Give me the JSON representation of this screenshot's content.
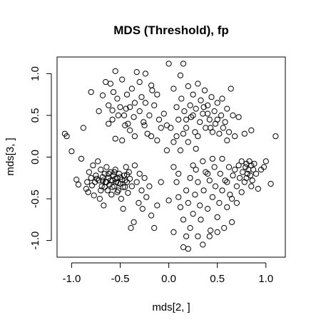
{
  "chart_data": {
    "type": "scatter",
    "title": "MDS (Threshold), fp",
    "xlabel": "mds[2, ]",
    "ylabel": "mds[3, ]",
    "xlim": [
      -1.15,
      1.2
    ],
    "ylim": [
      -1.2,
      1.2
    ],
    "xticks": [
      -1.0,
      -0.5,
      0.0,
      0.5,
      1.0
    ],
    "xtick_labels": [
      "-1.0",
      "-0.5",
      "0.0",
      "0.5",
      "1.0"
    ],
    "yticks": [
      -1.0,
      -0.5,
      0.0,
      0.5,
      1.0
    ],
    "ytick_labels": [
      "-1.0",
      "-0.5",
      "0.0",
      "0.5",
      "1.0"
    ],
    "grid": false,
    "marker": "open-circle",
    "points": [
      [
        -1.07,
        0.28
      ],
      [
        -1.05,
        0.25
      ],
      [
        -1.0,
        0.07
      ],
      [
        -0.95,
        -0.27
      ],
      [
        -0.93,
        -0.33
      ],
      [
        -0.9,
        -0.02
      ],
      [
        -0.88,
        0.35
      ],
      [
        -0.85,
        -0.38
      ],
      [
        -0.83,
        -0.42
      ],
      [
        -0.82,
        -0.18
      ],
      [
        -0.8,
        -0.25
      ],
      [
        -0.78,
        -0.1
      ],
      [
        -0.77,
        -0.46
      ],
      [
        -0.76,
        -0.3
      ],
      [
        -0.75,
        -0.22
      ],
      [
        -0.73,
        -0.05
      ],
      [
        -0.72,
        -0.28
      ],
      [
        -0.71,
        -0.5
      ],
      [
        -0.7,
        -0.15
      ],
      [
        -0.69,
        -0.35
      ],
      [
        -0.68,
        -0.24
      ],
      [
        -0.67,
        -0.58
      ],
      [
        -0.66,
        -0.2
      ],
      [
        -0.65,
        -0.3
      ],
      [
        -0.64,
        -0.12
      ],
      [
        -0.63,
        -0.4
      ],
      [
        -0.62,
        -0.25
      ],
      [
        -0.61,
        -0.33
      ],
      [
        -0.6,
        -0.18
      ],
      [
        -0.59,
        -0.45
      ],
      [
        -0.58,
        -0.28
      ],
      [
        -0.57,
        -0.22
      ],
      [
        -0.56,
        -0.35
      ],
      [
        -0.55,
        -0.15
      ],
      [
        -0.54,
        -0.3
      ],
      [
        -0.53,
        -0.25
      ],
      [
        -0.52,
        -0.4
      ],
      [
        -0.51,
        -0.2
      ],
      [
        -0.5,
        -0.32
      ],
      [
        -0.49,
        -0.5
      ],
      [
        -0.48,
        -0.27
      ],
      [
        -0.47,
        -0.62
      ],
      [
        -0.46,
        -0.22
      ],
      [
        -0.45,
        -0.36
      ],
      [
        -0.44,
        -0.12
      ],
      [
        -0.43,
        -0.3
      ],
      [
        -0.42,
        -0.43
      ],
      [
        -0.41,
        -0.18
      ],
      [
        -0.4,
        -0.26
      ],
      [
        -0.39,
        -0.85
      ],
      [
        -0.38,
        -0.35
      ],
      [
        -0.36,
        -0.78
      ],
      [
        -0.35,
        -0.1
      ],
      [
        -0.33,
        -0.3
      ],
      [
        -0.31,
        -0.55
      ],
      [
        -0.3,
        -0.2
      ],
      [
        -0.28,
        -0.4
      ],
      [
        -0.27,
        -0.62
      ],
      [
        -0.25,
        -0.25
      ],
      [
        -0.23,
        -0.48
      ],
      [
        -0.2,
        -0.35
      ],
      [
        -0.18,
        -0.7
      ],
      [
        -0.15,
        -0.85
      ],
      [
        -0.12,
        -0.58
      ],
      [
        -0.08,
        -0.3
      ],
      [
        -0.84,
        -0.3
      ],
      [
        -0.79,
        -0.34
      ],
      [
        -0.74,
        -0.26
      ],
      [
        -0.7,
        -0.4
      ],
      [
        -0.66,
        -0.36
      ],
      [
        -0.62,
        -0.2
      ],
      [
        -0.58,
        -0.36
      ],
      [
        -0.55,
        -0.26
      ],
      [
        -0.52,
        -0.31
      ],
      [
        -0.47,
        -0.36
      ],
      [
        -0.43,
        -0.21
      ],
      [
        -0.6,
        -0.28
      ],
      [
        -0.56,
        -0.18
      ],
      [
        -0.64,
        -0.3
      ],
      [
        -0.5,
        -0.24
      ],
      [
        -0.45,
        -0.28
      ],
      [
        -0.68,
        -0.28
      ],
      [
        -0.53,
        -0.42
      ],
      [
        -0.8,
        0.78
      ],
      [
        -0.72,
        0.55
      ],
      [
        -0.68,
        0.74
      ],
      [
        -0.65,
        0.9
      ],
      [
        -0.62,
        0.62
      ],
      [
        -0.6,
        0.88
      ],
      [
        -0.58,
        0.45
      ],
      [
        -0.57,
        0.78
      ],
      [
        -0.55,
        1.03
      ],
      [
        -0.53,
        0.7
      ],
      [
        -0.5,
        0.6
      ],
      [
        -0.48,
        0.93
      ],
      [
        -0.46,
        0.5
      ],
      [
        -0.45,
        0.38
      ],
      [
        -0.43,
        0.75
      ],
      [
        -0.4,
        0.6
      ],
      [
        -0.38,
        0.82
      ],
      [
        -0.36,
        0.48
      ],
      [
        -0.35,
        0.65
      ],
      [
        -0.33,
        1.02
      ],
      [
        -0.3,
        0.55
      ],
      [
        -0.28,
        0.72
      ],
      [
        -0.26,
        0.42
      ],
      [
        -0.24,
        0.65
      ],
      [
        -0.22,
        0.28
      ],
      [
        -0.2,
        0.5
      ],
      [
        -0.18,
        0.86
      ],
      [
        -0.15,
        0.62
      ],
      [
        -0.12,
        0.2
      ],
      [
        -0.1,
        0.45
      ],
      [
        -0.08,
        0.35
      ],
      [
        -0.05,
        0.52
      ],
      [
        -0.02,
        0.08
      ],
      [
        -0.4,
        0.32
      ],
      [
        -0.55,
        0.22
      ],
      [
        -0.62,
        0.4
      ],
      [
        -0.48,
        0.2
      ],
      [
        -0.35,
        0.25
      ],
      [
        -0.25,
        0.38
      ],
      [
        -0.18,
        0.25
      ],
      [
        -0.3,
        0.9
      ],
      [
        -0.44,
        0.58
      ],
      [
        -0.52,
        0.5
      ],
      [
        -0.58,
        0.56
      ],
      [
        -0.42,
        0.4
      ],
      [
        -0.24,
        1.0
      ],
      [
        -0.17,
        0.8
      ],
      [
        -0.12,
        0.75
      ],
      [
        0.0,
        1.12
      ],
      [
        0.05,
        0.82
      ],
      [
        0.08,
        0.6
      ],
      [
        0.1,
        0.45
      ],
      [
        0.12,
        0.98
      ],
      [
        0.13,
        0.7
      ],
      [
        0.15,
        1.12
      ],
      [
        0.16,
        0.55
      ],
      [
        0.18,
        0.35
      ],
      [
        0.2,
        0.85
      ],
      [
        0.22,
        0.62
      ],
      [
        0.23,
        0.48
      ],
      [
        0.25,
        0.75
      ],
      [
        0.27,
        0.3
      ],
      [
        0.28,
        0.58
      ],
      [
        0.3,
        0.88
      ],
      [
        0.32,
        0.42
      ],
      [
        0.33,
        0.68
      ],
      [
        0.35,
        0.52
      ],
      [
        0.37,
        0.8
      ],
      [
        0.38,
        0.35
      ],
      [
        0.4,
        0.62
      ],
      [
        0.42,
        0.45
      ],
      [
        0.44,
        0.72
      ],
      [
        0.45,
        0.3
      ],
      [
        0.47,
        0.55
      ],
      [
        0.48,
        0.4
      ],
      [
        0.5,
        0.65
      ],
      [
        0.52,
        0.28
      ],
      [
        0.54,
        0.5
      ],
      [
        0.55,
        0.7
      ],
      [
        0.58,
        0.42
      ],
      [
        0.6,
        0.58
      ],
      [
        0.62,
        0.3
      ],
      [
        0.64,
        0.82
      ],
      [
        0.66,
        0.5
      ],
      [
        0.68,
        0.25
      ],
      [
        0.72,
        0.48
      ],
      [
        0.78,
        0.28
      ],
      [
        0.85,
        0.32
      ],
      [
        1.1,
        0.25
      ],
      [
        0.02,
        0.35
      ],
      [
        0.05,
        0.18
      ],
      [
        0.08,
        0.25
      ],
      [
        0.15,
        0.28
      ],
      [
        0.2,
        0.18
      ],
      [
        0.25,
        0.5
      ],
      [
        0.3,
        0.25
      ],
      [
        0.36,
        0.6
      ],
      [
        0.43,
        0.35
      ],
      [
        0.5,
        0.45
      ],
      [
        0.56,
        0.35
      ],
      [
        0.6,
        0.2
      ],
      [
        -0.02,
        0.38
      ],
      [
        0.12,
        0.08
      ],
      [
        0.28,
        0.1
      ],
      [
        0.18,
        0.45
      ],
      [
        0.4,
        0.52
      ],
      [
        0.05,
        -0.12
      ],
      [
        0.08,
        -0.3
      ],
      [
        0.1,
        -0.48
      ],
      [
        0.12,
        -0.6
      ],
      [
        0.15,
        -0.75
      ],
      [
        0.15,
        -1.08
      ],
      [
        0.18,
        -0.4
      ],
      [
        0.2,
        -0.55
      ],
      [
        0.22,
        -0.25
      ],
      [
        0.22,
        -0.85
      ],
      [
        0.25,
        -0.68
      ],
      [
        0.27,
        -0.45
      ],
      [
        0.28,
        -0.15
      ],
      [
        0.3,
        -0.3
      ],
      [
        0.32,
        -0.58
      ],
      [
        0.33,
        -0.75
      ],
      [
        0.35,
        -1.05
      ],
      [
        0.36,
        -0.4
      ],
      [
        0.38,
        -0.18
      ],
      [
        0.4,
        -0.62
      ],
      [
        0.42,
        -0.28
      ],
      [
        0.43,
        -0.88
      ],
      [
        0.45,
        -0.48
      ],
      [
        0.47,
        -0.12
      ],
      [
        0.48,
        -0.35
      ],
      [
        0.5,
        -0.72
      ],
      [
        0.52,
        -0.55
      ],
      [
        0.53,
        -0.2
      ],
      [
        0.55,
        -0.4
      ],
      [
        0.57,
        -0.85
      ],
      [
        0.58,
        -0.28
      ],
      [
        0.6,
        -0.6
      ],
      [
        0.62,
        -0.12
      ],
      [
        0.63,
        -0.45
      ],
      [
        0.65,
        -0.78
      ],
      [
        0.66,
        -0.22
      ],
      [
        0.68,
        -0.15
      ],
      [
        0.7,
        -0.35
      ],
      [
        0.72,
        -0.1
      ],
      [
        0.73,
        -0.25
      ],
      [
        0.75,
        -0.05
      ],
      [
        0.76,
        -0.18
      ],
      [
        0.78,
        -0.3
      ],
      [
        0.79,
        -0.12
      ],
      [
        0.8,
        -0.08
      ],
      [
        0.81,
        -0.2
      ],
      [
        0.82,
        -0.15
      ],
      [
        0.83,
        -0.05
      ],
      [
        0.84,
        -0.22
      ],
      [
        0.85,
        -0.1
      ],
      [
        0.86,
        -0.28
      ],
      [
        0.87,
        -0.15
      ],
      [
        0.88,
        -0.08
      ],
      [
        0.9,
        -0.2
      ],
      [
        0.92,
        -0.38
      ],
      [
        0.95,
        -0.15
      ],
      [
        1.0,
        -0.05
      ],
      [
        0.05,
        -0.9
      ],
      [
        0.3,
        -0.95
      ],
      [
        0.2,
        -1.1
      ],
      [
        0.1,
        -0.2
      ],
      [
        0.35,
        -0.05
      ],
      [
        0.55,
        -0.02
      ],
      [
        0.65,
        -0.5
      ],
      [
        0.75,
        -0.42
      ],
      [
        0.7,
        -0.55
      ],
      [
        0.25,
        -0.1
      ],
      [
        0.4,
        -0.2
      ],
      [
        0.45,
        -0.02
      ],
      [
        0.6,
        -0.3
      ],
      [
        0.8,
        -0.25
      ],
      [
        0.85,
        -0.35
      ],
      [
        0.98,
        -0.12
      ],
      [
        1.05,
        -0.32
      ],
      [
        0.18,
        -0.95
      ],
      [
        0.42,
        -0.95
      ],
      [
        0.5,
        -0.9
      ],
      [
        0.0,
        -0.52
      ]
    ]
  }
}
